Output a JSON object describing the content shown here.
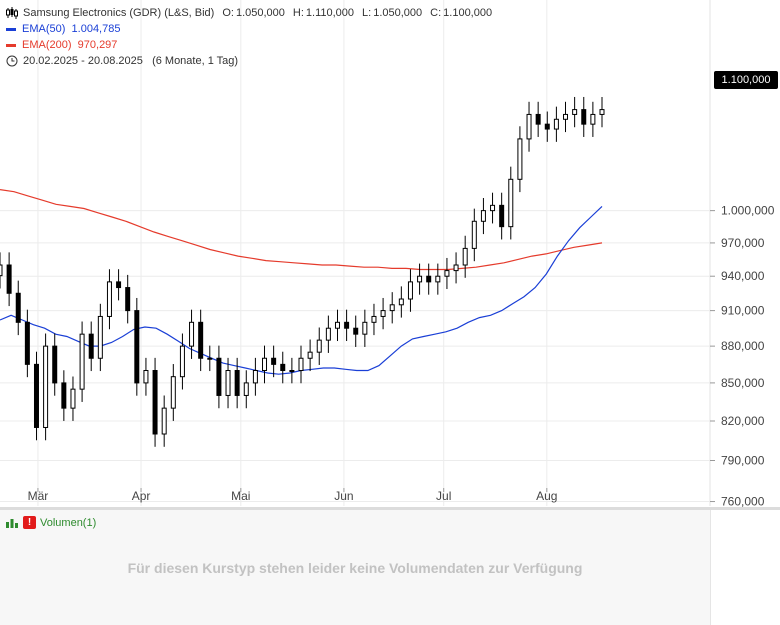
{
  "legend": {
    "title": "Samsung Electronics (GDR) (L&S, Bid)",
    "open_label": "O:",
    "open": "1.050,000",
    "high_label": "H:",
    "high": "1.110,000",
    "low_label": "L:",
    "low": "1.050,000",
    "close_label": "C:",
    "close": "1.100,000",
    "ema50_label": "EMA(50)",
    "ema50_value": "1.004,785",
    "ema200_label": "EMA(200)",
    "ema200_value": "970,297",
    "date_range": "20.02.2025 - 20.08.2025",
    "period": "(6 Monate, 1 Tag)"
  },
  "colors": {
    "ema50": "#1a3fd6",
    "ema200": "#e53b2c",
    "candle": "#000000",
    "grid": "#ececec",
    "volume_icon": "#2e8b2e"
  },
  "last_price_label": "1.100,000",
  "volume": {
    "label": "Volumen(1)",
    "message": "Für diesen Kurstyp stehen leider keine Volumendaten zur Verfügung"
  },
  "chart_data": {
    "type": "candlestick",
    "title": "Samsung Electronics (GDR) (L&S, Bid)",
    "y_ticks": [
      760,
      790,
      820,
      850,
      880,
      910,
      940,
      970,
      1000
    ],
    "y_tick_labels": [
      "760,000",
      "790,000",
      "820,000",
      "850,000",
      "880,000",
      "910,000",
      "940,000",
      "970,000",
      "1.000,000"
    ],
    "y_scale": "log",
    "x_labels": [
      "Mär",
      "Apr",
      "Mai",
      "Jun",
      "Jul",
      "Aug"
    ],
    "x_label_dates": [
      "2025-03-01",
      "2025-04-01",
      "2025-05-01",
      "2025-06-01",
      "2025-07-01",
      "2025-08-01"
    ],
    "x_range": [
      "2025-02-20",
      "2025-08-20"
    ],
    "grid": true,
    "candles_close": [
      950,
      925,
      900,
      865,
      815,
      880,
      850,
      830,
      845,
      890,
      870,
      905,
      935,
      930,
      910,
      850,
      860,
      810,
      830,
      855,
      880,
      900,
      870,
      870,
      840,
      860,
      840,
      850,
      860,
      870,
      865,
      860,
      860,
      870,
      875,
      885,
      895,
      900,
      895,
      890,
      900,
      905,
      910,
      915,
      920,
      935,
      940,
      935,
      940,
      945,
      950,
      965,
      990,
      1000,
      1005,
      985,
      1030,
      1070,
      1095,
      1085,
      1080,
      1090,
      1095,
      1100,
      1085,
      1095,
      1100
    ],
    "series": [
      {
        "name": "EMA(50)",
        "values": [
          902,
          906,
          902,
          898,
          895,
          890,
          888,
          884,
          880,
          880,
          883,
          888,
          894,
          896,
          895,
          890,
          884,
          878,
          874,
          870,
          866,
          864,
          862,
          860,
          858,
          857,
          858,
          860,
          861,
          862,
          862,
          861,
          860,
          860,
          864,
          872,
          880,
          886,
          888,
          890,
          892,
          895,
          900,
          904,
          906,
          910,
          916,
          922,
          930,
          942,
          958,
          972,
          984,
          994,
          1004
        ]
      },
      {
        "name": "EMA(200)",
        "values": [
          1020,
          1018,
          1014,
          1010,
          1006,
          1004,
          1002,
          998,
          994,
          990,
          985,
          980,
          976,
          972,
          968,
          964,
          961,
          958,
          956,
          954,
          953,
          952,
          951,
          950,
          950,
          949,
          948,
          948,
          947,
          947,
          946,
          946,
          946,
          947,
          948,
          950,
          952,
          955,
          958,
          960,
          963,
          966,
          968,
          970
        ]
      }
    ]
  }
}
